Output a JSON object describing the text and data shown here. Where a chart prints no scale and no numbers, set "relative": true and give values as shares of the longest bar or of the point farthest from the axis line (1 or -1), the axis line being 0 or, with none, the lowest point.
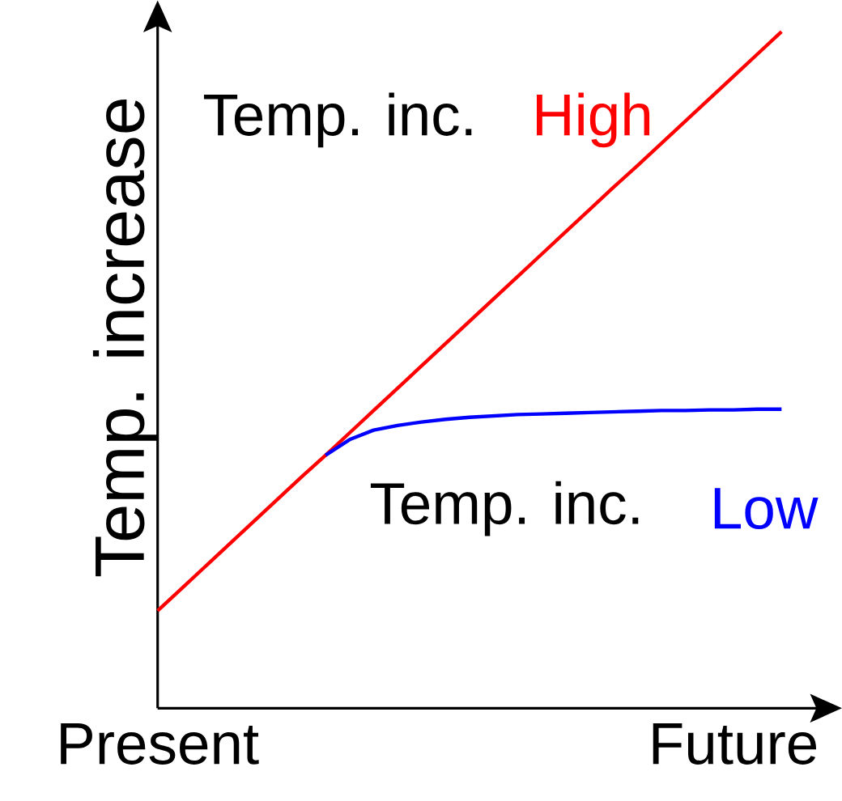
{
  "chart_data": {
    "type": "line",
    "relative": true,
    "ylabel": "Temp. increase",
    "categories": [
      "Present",
      null,
      null,
      null,
      null,
      null,
      null,
      null,
      null,
      null,
      null,
      null,
      null,
      null,
      null,
      null,
      null,
      null,
      null,
      null,
      null,
      null,
      null,
      null,
      "Future",
      null,
      null
    ],
    "series": [
      {
        "name": "High",
        "color": "#ff0000",
        "values": [
          0.144,
          0.177,
          0.21,
          0.243,
          0.276,
          0.309,
          0.342,
          0.374,
          0.407,
          0.44,
          0.473,
          0.506,
          0.539,
          0.572,
          0.605,
          0.638,
          0.671,
          0.704,
          0.737,
          0.77,
          0.802,
          0.835,
          0.868,
          0.901,
          0.934,
          0.967,
          1.0
        ]
      },
      {
        "name": "Low",
        "color": "#0000ff",
        "values": [
          null,
          null,
          null,
          null,
          null,
          null,
          null,
          0.374,
          0.397,
          0.411,
          0.418,
          0.423,
          0.427,
          0.43,
          0.432,
          0.434,
          0.435,
          0.436,
          0.437,
          0.438,
          0.439,
          0.44,
          0.44,
          0.441,
          0.441,
          0.442,
          0.442
        ]
      }
    ],
    "annotations": [
      "Temp. inc.",
      "Temp. inc."
    ],
    "tick_labels": "x",
    "marker": "none",
    "line_style": "solid"
  }
}
